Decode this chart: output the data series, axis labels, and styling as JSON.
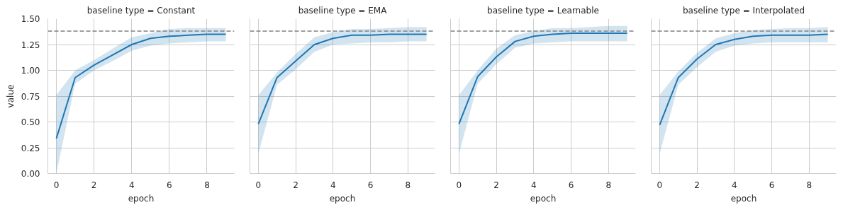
{
  "chart_data": [
    {
      "type": "line",
      "title": "baseline type = Constant",
      "xlabel": "epoch",
      "ylabel": "value",
      "xlim": [
        -0.45,
        9.45
      ],
      "ylim": [
        0,
        1.5
      ],
      "xticks": [
        0,
        2,
        4,
        6,
        8
      ],
      "yticks": [
        {
          "value": 0,
          "label": "0.00"
        },
        {
          "value": 0.25,
          "label": "0.25"
        },
        {
          "value": 0.5,
          "label": "0.50"
        },
        {
          "value": 0.75,
          "label": "0.75"
        },
        {
          "value": 1,
          "label": "1.00"
        },
        {
          "value": 1.25,
          "label": "1.25"
        },
        {
          "value": 1.5,
          "label": "1.50"
        }
      ],
      "grid": true,
      "x": [
        0,
        1,
        2,
        3,
        4,
        5,
        6,
        7,
        8,
        9
      ],
      "series": [
        {
          "color": "#1f77b4",
          "values": [
            0.34,
            0.93,
            1.05,
            1.15,
            1.25,
            1.31,
            1.33,
            1.34,
            1.35,
            1.35
          ],
          "lower": [
            0.0,
            0.87,
            1.0,
            1.09,
            1.19,
            1.24,
            1.26,
            1.27,
            1.28,
            1.28
          ],
          "upper": [
            0.76,
            1.0,
            1.1,
            1.21,
            1.32,
            1.36,
            1.4,
            1.41,
            1.41,
            1.41
          ]
        }
      ],
      "ref_lines": [
        {
          "axis": "y",
          "value": 1.38,
          "color": "#808080",
          "line_style": "dashed"
        }
      ]
    },
    {
      "type": "line",
      "title": "baseline type = EMA",
      "xlabel": "epoch",
      "xlim": [
        -0.45,
        9.45
      ],
      "ylim": [
        0,
        1.5
      ],
      "xticks": [
        0,
        2,
        4,
        6,
        8
      ],
      "yticks": [
        0,
        0.25,
        0.5,
        0.75,
        1,
        1.25,
        1.5
      ],
      "grid": true,
      "tick_labels": "x",
      "x": [
        0,
        1,
        2,
        3,
        4,
        5,
        6,
        7,
        8,
        9
      ],
      "series": [
        {
          "color": "#1f77b4",
          "values": [
            0.48,
            0.93,
            1.09,
            1.25,
            1.31,
            1.34,
            1.34,
            1.35,
            1.35,
            1.35
          ],
          "lower": [
            0.19,
            0.86,
            1.01,
            1.18,
            1.25,
            1.26,
            1.27,
            1.27,
            1.28,
            1.28
          ],
          "upper": [
            0.76,
            0.98,
            1.16,
            1.32,
            1.37,
            1.4,
            1.4,
            1.41,
            1.42,
            1.42
          ]
        }
      ],
      "ref_lines": [
        {
          "axis": "y",
          "value": 1.38,
          "color": "#808080",
          "line_style": "dashed"
        }
      ]
    },
    {
      "type": "line",
      "title": "baseline type = Learnable",
      "xlabel": "epoch",
      "xlim": [
        -0.45,
        9.45
      ],
      "ylim": [
        0,
        1.5
      ],
      "xticks": [
        0,
        2,
        4,
        6,
        8
      ],
      "yticks": [
        0,
        0.25,
        0.5,
        0.75,
        1,
        1.25,
        1.5
      ],
      "grid": true,
      "tick_labels": "x",
      "x": [
        0,
        1,
        2,
        3,
        4,
        5,
        6,
        7,
        8,
        9
      ],
      "series": [
        {
          "color": "#1f77b4",
          "values": [
            0.48,
            0.94,
            1.13,
            1.28,
            1.33,
            1.35,
            1.36,
            1.36,
            1.36,
            1.36
          ],
          "lower": [
            0.19,
            0.87,
            1.06,
            1.22,
            1.26,
            1.27,
            1.28,
            1.28,
            1.28,
            1.28
          ],
          "upper": [
            0.76,
            1.0,
            1.21,
            1.34,
            1.38,
            1.41,
            1.41,
            1.42,
            1.43,
            1.43
          ]
        }
      ],
      "ref_lines": [
        {
          "axis": "y",
          "value": 1.38,
          "color": "#808080",
          "line_style": "dashed"
        }
      ]
    },
    {
      "type": "line",
      "title": "baseline type = Interpolated",
      "xlabel": "epoch",
      "xlim": [
        -0.45,
        9.45
      ],
      "ylim": [
        0,
        1.5
      ],
      "xticks": [
        0,
        2,
        4,
        6,
        8
      ],
      "yticks": [
        0,
        0.25,
        0.5,
        0.75,
        1,
        1.25,
        1.5
      ],
      "grid": true,
      "tick_labels": "x",
      "x": [
        0,
        1,
        2,
        3,
        4,
        5,
        6,
        7,
        8,
        9
      ],
      "series": [
        {
          "color": "#1f77b4",
          "values": [
            0.47,
            0.93,
            1.11,
            1.25,
            1.3,
            1.33,
            1.34,
            1.34,
            1.34,
            1.35
          ],
          "lower": [
            0.19,
            0.86,
            1.03,
            1.18,
            1.24,
            1.26,
            1.27,
            1.27,
            1.27,
            1.27
          ],
          "upper": [
            0.76,
            0.99,
            1.17,
            1.31,
            1.36,
            1.39,
            1.4,
            1.41,
            1.41,
            1.42
          ]
        }
      ],
      "ref_lines": [
        {
          "axis": "y",
          "value": 1.38,
          "color": "#808080",
          "line_style": "dashed"
        }
      ]
    }
  ]
}
